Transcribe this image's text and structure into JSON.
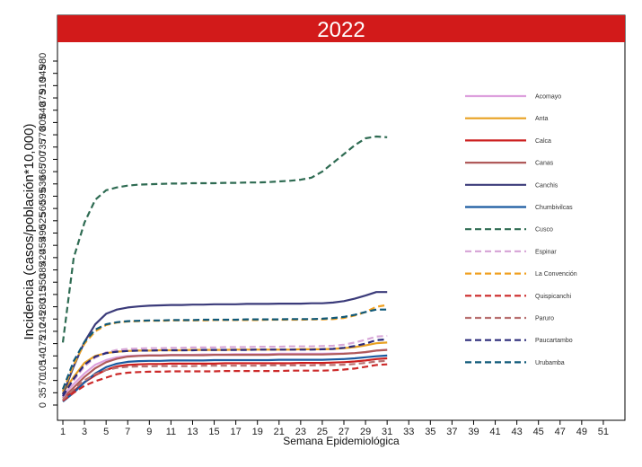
{
  "chart_data": {
    "type": "line",
    "title": "2022",
    "xlabel": "Semana Epidemiológica",
    "ylabel": "Incidencia (casos/población*10,000)",
    "xlim": [
      0.5,
      53
    ],
    "ylim": [
      -14,
      1000
    ],
    "xticks": [
      1,
      3,
      5,
      7,
      9,
      11,
      13,
      15,
      17,
      19,
      21,
      23,
      25,
      27,
      29,
      31,
      33,
      35,
      37,
      39,
      41,
      43,
      45,
      47,
      49,
      51
    ],
    "yticks": [
      0,
      35,
      70,
      105,
      140,
      175,
      210,
      245,
      280,
      315,
      350,
      385,
      420,
      455,
      490,
      525,
      560,
      595,
      630,
      665,
      700,
      735,
      770,
      805,
      840,
      875,
      910,
      945,
      980
    ],
    "grid": false,
    "legend_position": "right",
    "x": [
      1,
      2,
      3,
      4,
      5,
      6,
      7,
      8,
      9,
      10,
      11,
      12,
      13,
      14,
      15,
      16,
      17,
      18,
      19,
      20,
      21,
      22,
      23,
      24,
      25,
      26,
      27,
      28,
      29,
      30,
      31
    ],
    "series": [
      {
        "name": "Acomayo",
        "color": "#dda0dd",
        "dash": false,
        "values": [
          28,
          60,
          90,
          115,
          128,
          136,
          140,
          141,
          142,
          142,
          143,
          143,
          143,
          144,
          144,
          144,
          145,
          145,
          145,
          145,
          146,
          146,
          146,
          146,
          146,
          147,
          147,
          148,
          150,
          155,
          158
        ]
      },
      {
        "name": "Anta",
        "color": "#e8a020",
        "dash": false,
        "values": [
          35,
          80,
          120,
          140,
          148,
          152,
          154,
          155,
          155,
          156,
          156,
          156,
          157,
          157,
          157,
          157,
          158,
          158,
          158,
          158,
          158,
          158,
          159,
          159,
          159,
          160,
          162,
          165,
          170,
          176,
          178
        ]
      },
      {
        "name": "Calca",
        "color": "#cc1f1f",
        "dash": false,
        "values": [
          15,
          40,
          65,
          85,
          100,
          110,
          114,
          116,
          117,
          117,
          118,
          118,
          118,
          118,
          118,
          119,
          119,
          119,
          119,
          119,
          119,
          119,
          120,
          120,
          120,
          121,
          122,
          124,
          127,
          131,
          133
        ]
      },
      {
        "name": "Canas",
        "color": "#b05a5a",
        "dash": false,
        "values": [
          20,
          50,
          80,
          105,
          122,
          132,
          138,
          140,
          141,
          141,
          142,
          142,
          142,
          142,
          143,
          143,
          143,
          143,
          143,
          143,
          144,
          144,
          144,
          144,
          144,
          145,
          146,
          148,
          151,
          155,
          157
        ]
      },
      {
        "name": "Canchis",
        "color": "#3b3b7a",
        "dash": false,
        "values": [
          30,
          110,
          180,
          230,
          260,
          272,
          278,
          281,
          283,
          284,
          285,
          285,
          286,
          286,
          287,
          287,
          287,
          288,
          288,
          288,
          289,
          289,
          289,
          290,
          290,
          292,
          296,
          303,
          312,
          322,
          322
        ]
      },
      {
        "name": "Chumbivilcas",
        "color": "#1a5aa0",
        "dash": false,
        "values": [
          10,
          35,
          65,
          90,
          108,
          118,
          123,
          125,
          126,
          126,
          127,
          127,
          127,
          127,
          128,
          128,
          128,
          128,
          128,
          128,
          129,
          129,
          129,
          129,
          129,
          130,
          131,
          133,
          136,
          139,
          141
        ]
      },
      {
        "name": "Cusco",
        "color": "#2e6b52",
        "dash": true,
        "values": [
          178,
          420,
          520,
          585,
          612,
          620,
          625,
          628,
          629,
          630,
          631,
          631,
          632,
          632,
          632,
          633,
          633,
          634,
          634,
          635,
          637,
          639,
          642,
          648,
          665,
          690,
          715,
          740,
          760,
          765,
          763
        ]
      },
      {
        "name": "Espinar",
        "color": "#d8a8d8",
        "dash": true,
        "values": [
          22,
          70,
          110,
          135,
          150,
          157,
          160,
          161,
          162,
          162,
          163,
          163,
          164,
          164,
          164,
          165,
          165,
          165,
          166,
          166,
          166,
          167,
          167,
          167,
          168,
          169,
          172,
          178,
          186,
          195,
          197
        ]
      },
      {
        "name": "La Convención",
        "color": "#f0a020",
        "dash": true,
        "values": [
          40,
          115,
          175,
          210,
          228,
          235,
          238,
          239,
          240,
          240,
          241,
          241,
          241,
          241,
          242,
          242,
          242,
          242,
          242,
          243,
          243,
          243,
          243,
          244,
          244,
          245,
          248,
          255,
          265,
          280,
          285
        ]
      },
      {
        "name": "Quispicanchi",
        "color": "#cc2a2a",
        "dash": true,
        "values": [
          12,
          35,
          55,
          68,
          78,
          88,
          92,
          94,
          95,
          95,
          96,
          96,
          96,
          96,
          96,
          97,
          97,
          97,
          97,
          97,
          97,
          98,
          98,
          98,
          98,
          99,
          101,
          104,
          109,
          114,
          116
        ]
      },
      {
        "name": "Paruro",
        "color": "#b87070",
        "dash": true,
        "values": [
          15,
          45,
          70,
          88,
          100,
          106,
          109,
          110,
          110,
          111,
          111,
          111,
          111,
          112,
          112,
          112,
          112,
          112,
          112,
          113,
          113,
          113,
          113,
          113,
          114,
          114,
          115,
          117,
          120,
          124,
          126
        ]
      },
      {
        "name": "Paucartambo",
        "color": "#2b2b7a",
        "dash": true,
        "values": [
          25,
          75,
          115,
          138,
          148,
          152,
          154,
          155,
          155,
          156,
          156,
          156,
          156,
          157,
          157,
          157,
          157,
          157,
          158,
          158,
          158,
          158,
          158,
          158,
          159,
          160,
          163,
          168,
          175,
          185,
          187
        ]
      },
      {
        "name": "Urubamba",
        "color": "#0f5878",
        "dash": true,
        "values": [
          45,
          125,
          180,
          215,
          230,
          236,
          239,
          240,
          241,
          241,
          242,
          242,
          242,
          243,
          243,
          243,
          243,
          244,
          244,
          244,
          244,
          245,
          245,
          245,
          246,
          248,
          251,
          257,
          265,
          272,
          272
        ]
      }
    ]
  }
}
